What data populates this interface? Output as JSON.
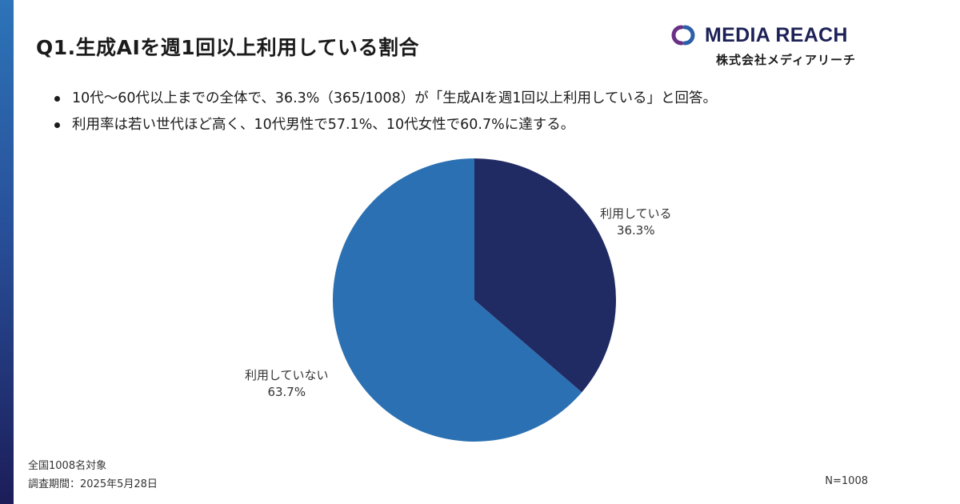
{
  "header": {
    "title": "Q1.生成AIを週1回以上利用している割合"
  },
  "logo": {
    "name": "MEDIA REACH",
    "sub": "株式会社メディアリーチ"
  },
  "bullets": [
    "10代〜60代以上までの全体で、36.3%（365/1008）が「生成AIを週1回以上利用している」と回答。",
    "利用率は若い世代ほど高く、10代男性で57.1%、10代女性で60.7%に達する。"
  ],
  "chart_data": {
    "type": "pie",
    "slices": [
      {
        "label": "利用している",
        "value": 36.3,
        "value_label": "36.3%",
        "color": "#212b63"
      },
      {
        "label": "利用していない",
        "value": 63.7,
        "value_label": "63.7%",
        "color": "#2b70b2"
      }
    ]
  },
  "footer": {
    "note1": "全国1008名対象",
    "note2": "調査期間：2025年5月28日",
    "n_count": "N=1008"
  }
}
